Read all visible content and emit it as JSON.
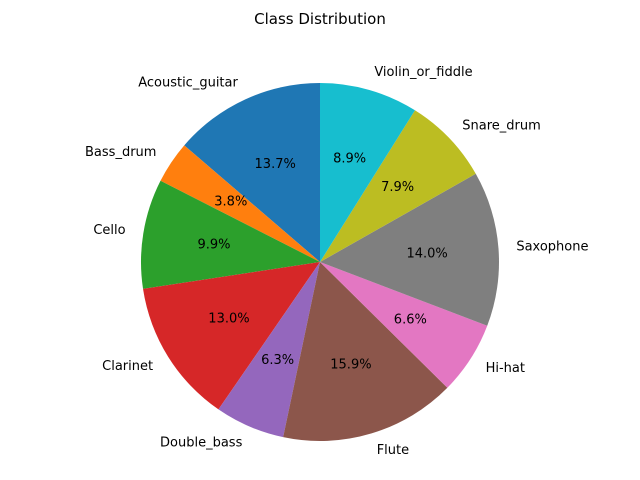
{
  "chart_data": {
    "type": "pie",
    "title": "Class Distribution",
    "start_angle_deg": 90,
    "direction": "counterclockwise",
    "slices": [
      {
        "label": "Acoustic_guitar",
        "value": 13.7,
        "pct_label": "13.7%",
        "color": "#1f77b4"
      },
      {
        "label": "Bass_drum",
        "value": 3.8,
        "pct_label": "3.8%",
        "color": "#ff7f0e"
      },
      {
        "label": "Cello",
        "value": 9.9,
        "pct_label": "9.9%",
        "color": "#2ca02c"
      },
      {
        "label": "Clarinet",
        "value": 13.0,
        "pct_label": "13.0%",
        "color": "#d62728"
      },
      {
        "label": "Double_bass",
        "value": 6.3,
        "pct_label": "6.3%",
        "color": "#9467bd"
      },
      {
        "label": "Flute",
        "value": 15.9,
        "pct_label": "15.9%",
        "color": "#8c564b"
      },
      {
        "label": "Hi-hat",
        "value": 6.6,
        "pct_label": "6.6%",
        "color": "#e377c2"
      },
      {
        "label": "Saxophone",
        "value": 14.0,
        "pct_label": "14.0%",
        "color": "#7f7f7f"
      },
      {
        "label": "Snare_drum",
        "value": 7.9,
        "pct_label": "7.9%",
        "color": "#bcbd22"
      },
      {
        "label": "Violin_or_fiddle",
        "value": 8.9,
        "pct_label": "8.9%",
        "color": "#17becf"
      }
    ]
  }
}
